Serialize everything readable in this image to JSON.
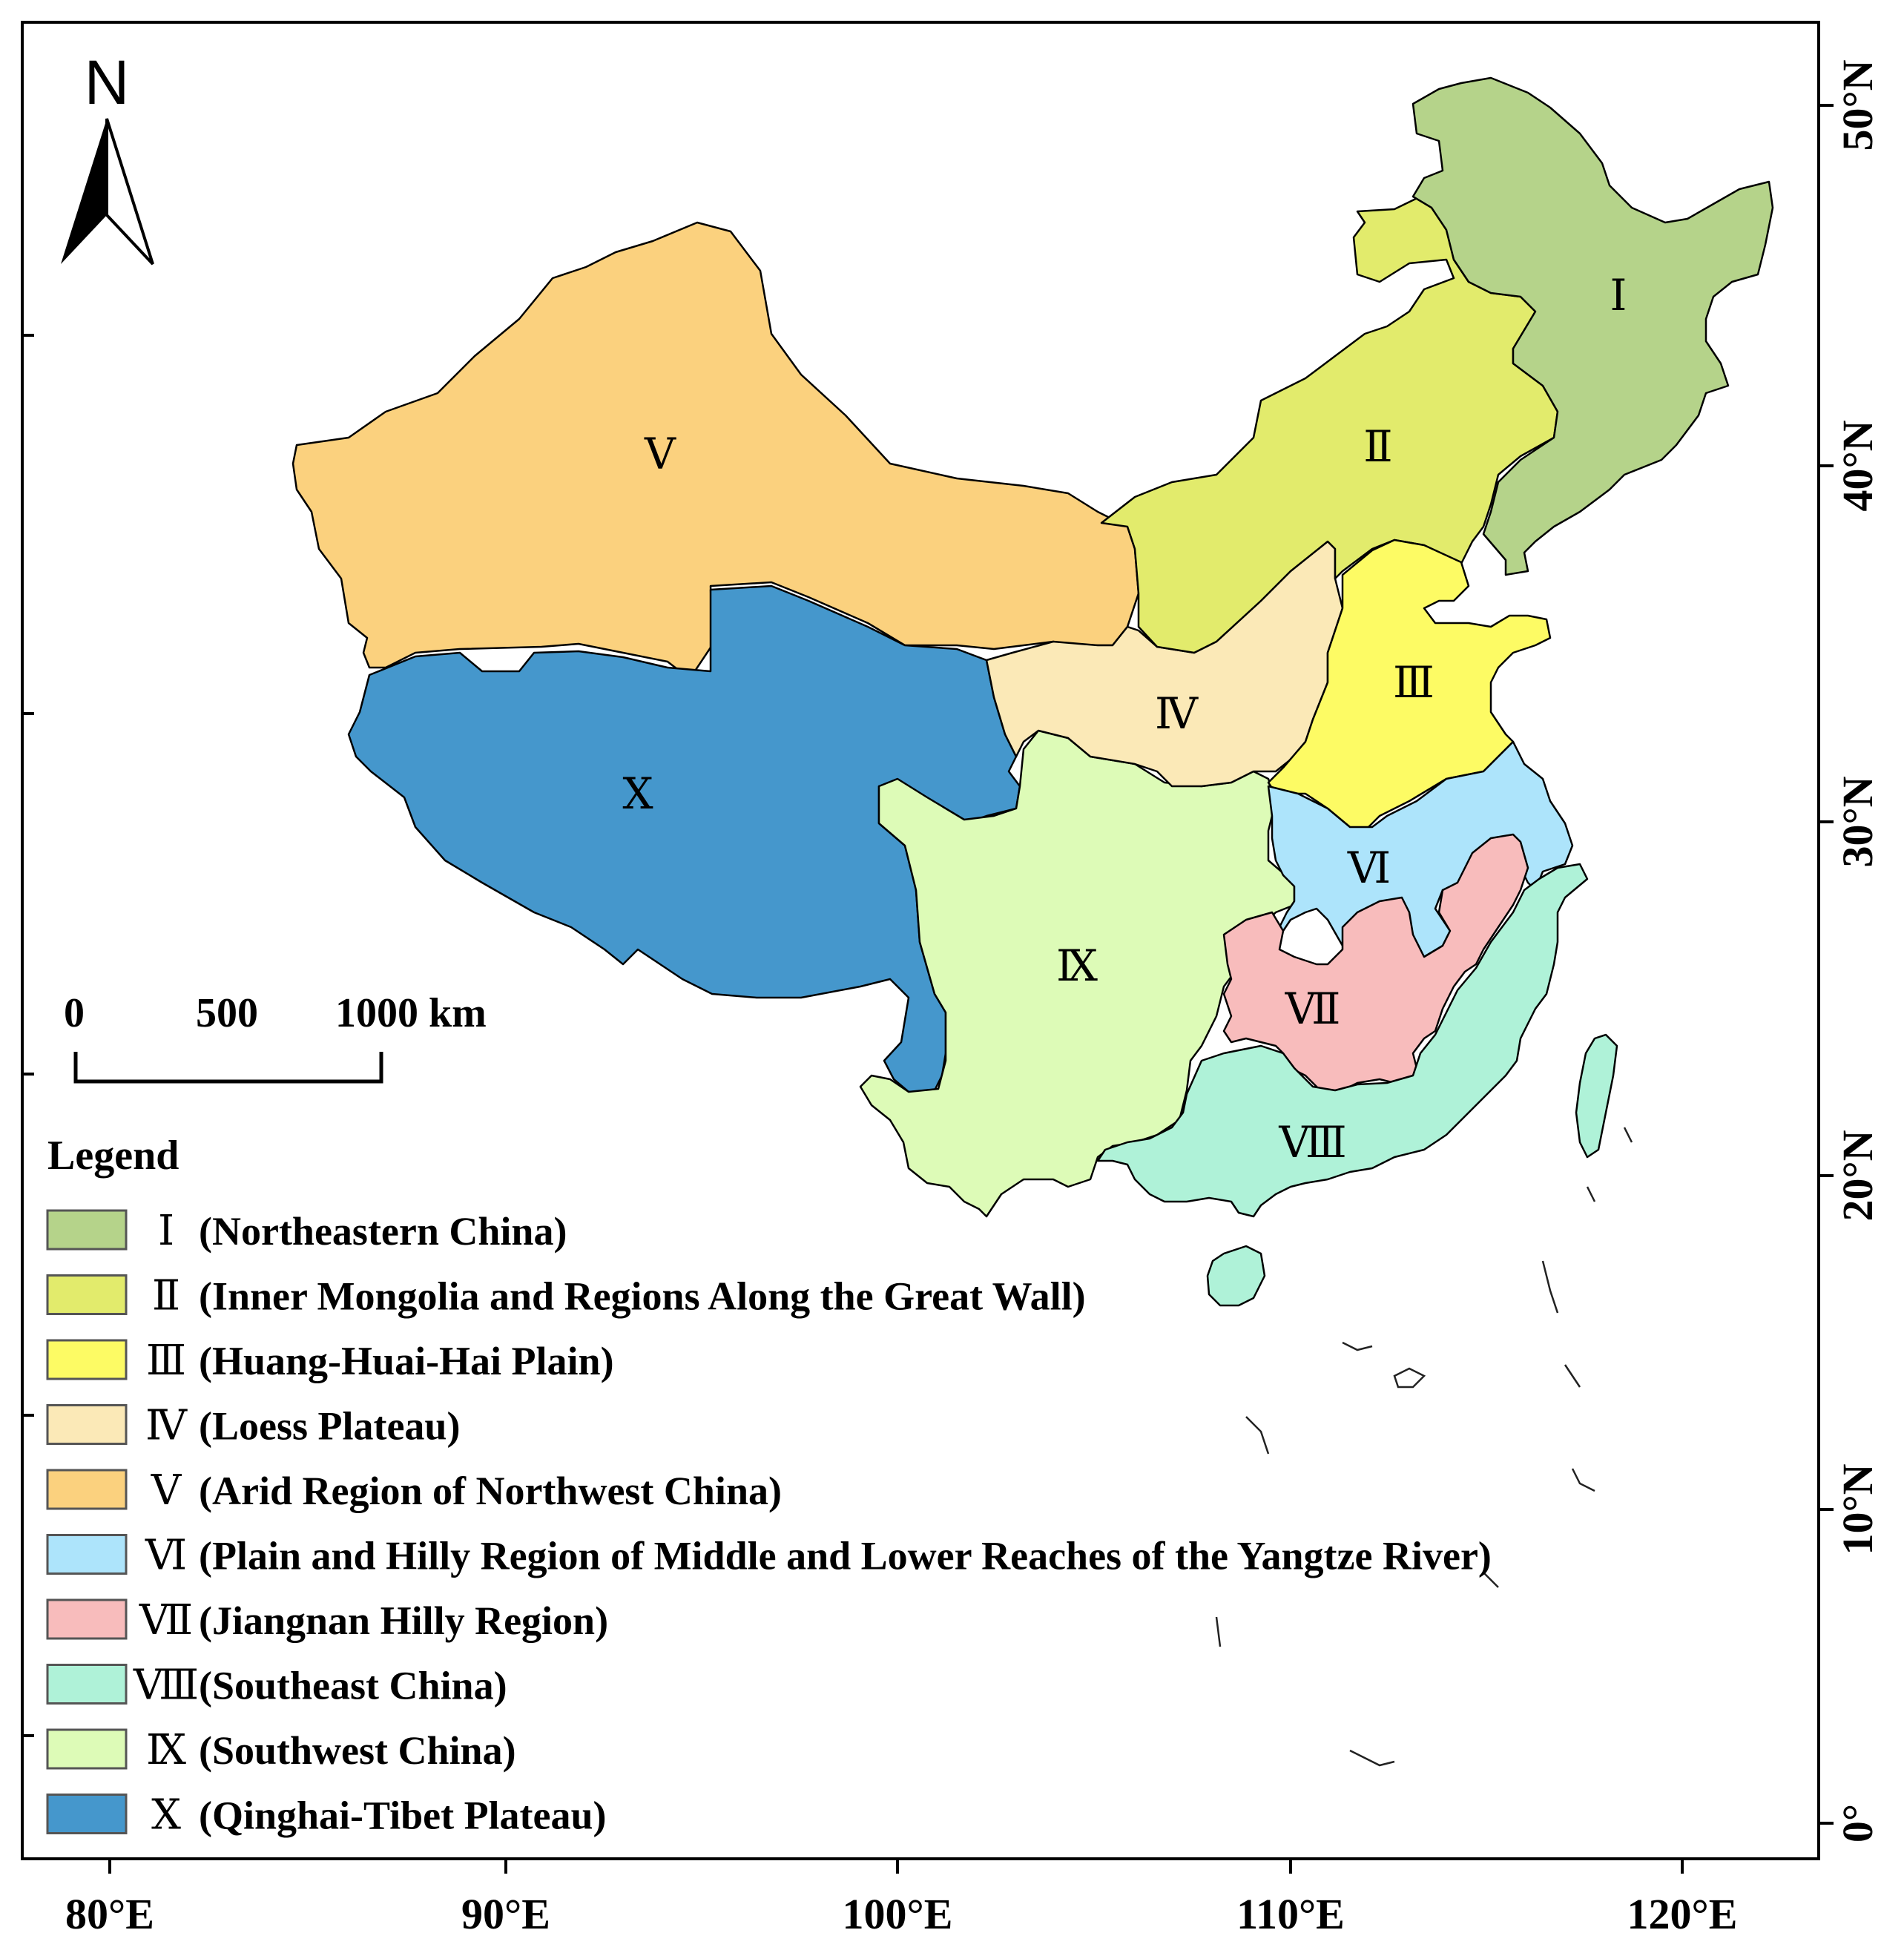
{
  "north_label": "N",
  "scale_bar": {
    "labels": [
      "0",
      "500",
      "1000 km"
    ]
  },
  "axes": {
    "x_ticks": [
      "80°E",
      "90°E",
      "100°E",
      "110°E",
      "120°E"
    ],
    "y_ticks": [
      "50°N",
      "40°N",
      "30°N",
      "20°N",
      "10°N",
      "0°"
    ]
  },
  "legend": {
    "title": "Legend",
    "items": [
      {
        "num": "Ⅰ",
        "label": "(Northeastern China)",
        "color": "#b5d38a"
      },
      {
        "num": "Ⅱ",
        "label": "(Inner Mongolia and Regions Along the Great Wall)",
        "color": "#e2eb6c"
      },
      {
        "num": "Ⅲ",
        "label": "(Huang-Huai-Hai Plain)",
        "color": "#fdfb64"
      },
      {
        "num": "Ⅳ",
        "label": "(Loess Plateau)",
        "color": "#fbe9b7"
      },
      {
        "num": "Ⅴ",
        "label": "(Arid Region of Northwest China)",
        "color": "#fbd17e"
      },
      {
        "num": "Ⅵ",
        "label": "(Plain and Hilly Region of Middle and Lower Reaches of the Yangtze River)",
        "color": "#ade4fb"
      },
      {
        "num": "Ⅶ",
        "label": "(Jiangnan Hilly Region)",
        "color": "#f8bcbc"
      },
      {
        "num": "Ⅷ",
        "label": "(Southeast China)",
        "color": "#aff2d8"
      },
      {
        "num": "Ⅸ",
        "label": "(Southwest China)",
        "color": "#ddfbb7"
      },
      {
        "num": "Ⅹ",
        "label": "(Qinghai-Tibet Plateau)",
        "color": "#4597cc"
      }
    ]
  },
  "regions": [
    {
      "num": "Ⅰ",
      "color": "#b5d38a"
    },
    {
      "num": "Ⅱ",
      "color": "#e2eb6c"
    },
    {
      "num": "Ⅲ",
      "color": "#fdfb64"
    },
    {
      "num": "Ⅳ",
      "color": "#fbe9b7"
    },
    {
      "num": "Ⅴ",
      "color": "#fbd17e"
    },
    {
      "num": "Ⅵ",
      "color": "#ade4fb"
    },
    {
      "num": "Ⅶ",
      "color": "#f8bcbc"
    },
    {
      "num": "Ⅷ",
      "color": "#aff2d8"
    },
    {
      "num": "Ⅸ",
      "color": "#ddfbb7"
    },
    {
      "num": "Ⅹ",
      "color": "#4597cc"
    }
  ]
}
